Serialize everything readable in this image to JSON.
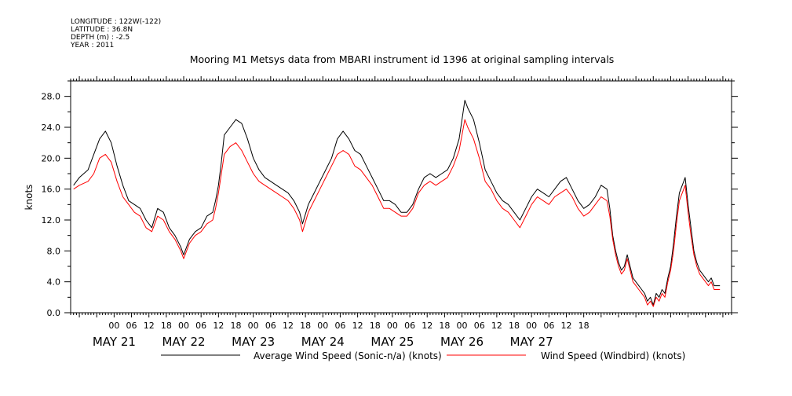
{
  "header": {
    "longitude": "LONGITUDE : 122W(-122)",
    "latitude": "LATITUDE : 36.8N",
    "depth": "DEPTH (m) : -2.5",
    "year": "YEAR : 2011"
  },
  "chart_data": {
    "type": "line",
    "title": "Mooring M1 Metsys data from MBARI instrument id 1396 at original sampling intervals",
    "xlabel": "",
    "ylabel": "knots",
    "x_unit": "hours since May 21 00:00 (2011)",
    "xlim": [
      -15,
      213
    ],
    "ylim": [
      0,
      30
    ],
    "y_ticks": [
      0.0,
      4.0,
      8.0,
      12.0,
      16.0,
      20.0,
      24.0,
      28.0
    ],
    "y_tick_labels": [
      "0.0",
      "4.0",
      "8.0",
      "12.0",
      "16.0",
      "20.0",
      "24.0",
      "28.0"
    ],
    "hour_tick_labels": [
      "00",
      "06",
      "12",
      "18",
      "00",
      "06",
      "12",
      "18",
      "00",
      "06",
      "12",
      "18",
      "00",
      "06",
      "12",
      "18",
      "00",
      "06",
      "12",
      "18",
      "00",
      "06",
      "12",
      "18",
      "00",
      "06",
      "12",
      "18"
    ],
    "day_labels": [
      "MAY 21",
      "MAY 22",
      "MAY 23",
      "MAY 24",
      "MAY 25",
      "MAY 26",
      "MAY 27"
    ],
    "grid": false,
    "legend_position": "bottom",
    "series": [
      {
        "name": "Average Wind Speed (Sonic-n/a) (knots)",
        "color": "#000000",
        "points": [
          [
            -14,
            16.5
          ],
          [
            -12,
            17.5
          ],
          [
            -9,
            18.5
          ],
          [
            -7,
            20.5
          ],
          [
            -5,
            22.5
          ],
          [
            -3,
            23.5
          ],
          [
            -1,
            22.0
          ],
          [
            1,
            19.0
          ],
          [
            3,
            16.5
          ],
          [
            5,
            14.5
          ],
          [
            7,
            14.0
          ],
          [
            9,
            13.5
          ],
          [
            11,
            12.0
          ],
          [
            13,
            11.0
          ],
          [
            15,
            13.5
          ],
          [
            17,
            13.0
          ],
          [
            19,
            11.0
          ],
          [
            21,
            10.0
          ],
          [
            23,
            8.5
          ],
          [
            24,
            7.5
          ],
          [
            26,
            9.5
          ],
          [
            28,
            10.5
          ],
          [
            30,
            11.0
          ],
          [
            32,
            12.5
          ],
          [
            34,
            13.0
          ],
          [
            35,
            14.5
          ],
          [
            36,
            16.5
          ],
          [
            37,
            19.5
          ],
          [
            38,
            23.0
          ],
          [
            40,
            24.0
          ],
          [
            42,
            25.0
          ],
          [
            44,
            24.5
          ],
          [
            46,
            22.5
          ],
          [
            48,
            20.0
          ],
          [
            50,
            18.5
          ],
          [
            52,
            17.5
          ],
          [
            54,
            17.0
          ],
          [
            56,
            16.5
          ],
          [
            58,
            16.0
          ],
          [
            60,
            15.5
          ],
          [
            62,
            14.5
          ],
          [
            64,
            13.0
          ],
          [
            65,
            11.5
          ],
          [
            67,
            14.0
          ],
          [
            69,
            15.5
          ],
          [
            71,
            17.0
          ],
          [
            73,
            18.5
          ],
          [
            75,
            20.0
          ],
          [
            77,
            22.5
          ],
          [
            79,
            23.5
          ],
          [
            81,
            22.5
          ],
          [
            83,
            21.0
          ],
          [
            85,
            20.5
          ],
          [
            87,
            19.0
          ],
          [
            89,
            17.5
          ],
          [
            91,
            16.0
          ],
          [
            93,
            14.5
          ],
          [
            95,
            14.5
          ],
          [
            97,
            14.0
          ],
          [
            99,
            13.0
          ],
          [
            101,
            13.0
          ],
          [
            103,
            14.0
          ],
          [
            105,
            16.0
          ],
          [
            107,
            17.5
          ],
          [
            109,
            18.0
          ],
          [
            111,
            17.5
          ],
          [
            113,
            18.0
          ],
          [
            115,
            18.5
          ],
          [
            117,
            20.0
          ],
          [
            119,
            22.5
          ],
          [
            120,
            25.0
          ],
          [
            121,
            27.5
          ],
          [
            122,
            26.5
          ],
          [
            124,
            25.0
          ],
          [
            126,
            22.0
          ],
          [
            128,
            18.5
          ],
          [
            130,
            17.0
          ],
          [
            132,
            15.5
          ],
          [
            134,
            14.5
          ],
          [
            136,
            14.0
          ],
          [
            138,
            13.0
          ],
          [
            140,
            12.0
          ],
          [
            142,
            13.5
          ],
          [
            144,
            15.0
          ],
          [
            146,
            16.0
          ],
          [
            148,
            15.5
          ],
          [
            150,
            15.0
          ],
          [
            152,
            16.0
          ],
          [
            154,
            17.0
          ],
          [
            156,
            17.5
          ],
          [
            158,
            16.0
          ],
          [
            160,
            14.5
          ],
          [
            162,
            13.5
          ],
          [
            164,
            14.0
          ],
          [
            166,
            15.0
          ],
          [
            168,
            16.5
          ],
          [
            170,
            16.0
          ],
          [
            171,
            13.5
          ],
          [
            172,
            10.0
          ],
          [
            173,
            8.0
          ],
          [
            174,
            6.5
          ],
          [
            175,
            5.5
          ],
          [
            176,
            6.0
          ],
          [
            177,
            7.5
          ],
          [
            178,
            6.0
          ],
          [
            179,
            4.5
          ],
          [
            180,
            4.0
          ],
          [
            181,
            3.5
          ],
          [
            182,
            3.0
          ],
          [
            183,
            2.5
          ],
          [
            184,
            1.5
          ],
          [
            185,
            2.0
          ],
          [
            186,
            1.0
          ],
          [
            187,
            2.5
          ],
          [
            188,
            2.0
          ],
          [
            189,
            3.0
          ],
          [
            190,
            2.5
          ],
          [
            191,
            4.5
          ],
          [
            192,
            6.0
          ],
          [
            193,
            9.0
          ],
          [
            194,
            12.5
          ],
          [
            195,
            15.5
          ],
          [
            196,
            16.5
          ],
          [
            197,
            17.5
          ],
          [
            198,
            14.0
          ],
          [
            199,
            11.0
          ],
          [
            200,
            8.0
          ],
          [
            201,
            6.5
          ],
          [
            202,
            5.5
          ],
          [
            203,
            5.0
          ],
          [
            204,
            4.5
          ],
          [
            205,
            4.0
          ],
          [
            206,
            4.5
          ],
          [
            207,
            3.5
          ],
          [
            208,
            3.5
          ],
          [
            209,
            3.5
          ]
        ]
      },
      {
        "name": "Wind Speed (Windbird) (knots)",
        "color": "#ff0000",
        "points": [
          [
            -14,
            16.0
          ],
          [
            -12,
            16.5
          ],
          [
            -9,
            17.0
          ],
          [
            -7,
            18.0
          ],
          [
            -5,
            20.0
          ],
          [
            -3,
            20.5
          ],
          [
            -1,
            19.5
          ],
          [
            1,
            17.0
          ],
          [
            3,
            15.0
          ],
          [
            5,
            14.0
          ],
          [
            7,
            13.0
          ],
          [
            9,
            12.5
          ],
          [
            11,
            11.0
          ],
          [
            13,
            10.5
          ],
          [
            15,
            12.5
          ],
          [
            17,
            12.0
          ],
          [
            19,
            10.5
          ],
          [
            21,
            9.5
          ],
          [
            23,
            8.0
          ],
          [
            24,
            7.0
          ],
          [
            26,
            9.0
          ],
          [
            28,
            10.0
          ],
          [
            30,
            10.5
          ],
          [
            32,
            11.5
          ],
          [
            34,
            12.0
          ],
          [
            35,
            13.5
          ],
          [
            36,
            15.5
          ],
          [
            37,
            18.0
          ],
          [
            38,
            20.5
          ],
          [
            40,
            21.5
          ],
          [
            42,
            22.0
          ],
          [
            44,
            21.0
          ],
          [
            46,
            19.5
          ],
          [
            48,
            18.0
          ],
          [
            50,
            17.0
          ],
          [
            52,
            16.5
          ],
          [
            54,
            16.0
          ],
          [
            56,
            15.5
          ],
          [
            58,
            15.0
          ],
          [
            60,
            14.5
          ],
          [
            62,
            13.5
          ],
          [
            64,
            12.0
          ],
          [
            65,
            10.5
          ],
          [
            67,
            13.0
          ],
          [
            69,
            14.5
          ],
          [
            71,
            16.0
          ],
          [
            73,
            17.5
          ],
          [
            75,
            19.0
          ],
          [
            77,
            20.5
          ],
          [
            79,
            21.0
          ],
          [
            81,
            20.5
          ],
          [
            83,
            19.0
          ],
          [
            85,
            18.5
          ],
          [
            87,
            17.5
          ],
          [
            89,
            16.5
          ],
          [
            91,
            15.0
          ],
          [
            93,
            13.5
          ],
          [
            95,
            13.5
          ],
          [
            97,
            13.0
          ],
          [
            99,
            12.5
          ],
          [
            101,
            12.5
          ],
          [
            103,
            13.5
          ],
          [
            105,
            15.5
          ],
          [
            107,
            16.5
          ],
          [
            109,
            17.0
          ],
          [
            111,
            16.5
          ],
          [
            113,
            17.0
          ],
          [
            115,
            17.5
          ],
          [
            117,
            19.0
          ],
          [
            119,
            21.0
          ],
          [
            120,
            23.0
          ],
          [
            121,
            25.0
          ],
          [
            122,
            24.0
          ],
          [
            124,
            22.5
          ],
          [
            126,
            20.0
          ],
          [
            128,
            17.0
          ],
          [
            130,
            16.0
          ],
          [
            132,
            14.5
          ],
          [
            134,
            13.5
          ],
          [
            136,
            13.0
          ],
          [
            138,
            12.0
          ],
          [
            140,
            11.0
          ],
          [
            142,
            12.5
          ],
          [
            144,
            14.0
          ],
          [
            146,
            15.0
          ],
          [
            148,
            14.5
          ],
          [
            150,
            14.0
          ],
          [
            152,
            15.0
          ],
          [
            154,
            15.5
          ],
          [
            156,
            16.0
          ],
          [
            158,
            15.0
          ],
          [
            160,
            13.5
          ],
          [
            162,
            12.5
          ],
          [
            164,
            13.0
          ],
          [
            166,
            14.0
          ],
          [
            168,
            15.0
          ],
          [
            170,
            14.5
          ],
          [
            171,
            12.5
          ],
          [
            172,
            9.5
          ],
          [
            173,
            7.5
          ],
          [
            174,
            6.0
          ],
          [
            175,
            5.0
          ],
          [
            176,
            5.5
          ],
          [
            177,
            7.0
          ],
          [
            178,
            5.5
          ],
          [
            179,
            4.0
          ],
          [
            180,
            3.5
          ],
          [
            181,
            3.0
          ],
          [
            182,
            2.5
          ],
          [
            183,
            2.0
          ],
          [
            184,
            1.0
          ],
          [
            185,
            1.5
          ],
          [
            186,
            0.8
          ],
          [
            187,
            2.0
          ],
          [
            188,
            1.5
          ],
          [
            189,
            2.5
          ],
          [
            190,
            2.0
          ],
          [
            191,
            4.0
          ],
          [
            192,
            5.5
          ],
          [
            193,
            8.0
          ],
          [
            194,
            11.5
          ],
          [
            195,
            14.5
          ],
          [
            196,
            15.5
          ],
          [
            197,
            16.5
          ],
          [
            198,
            13.0
          ],
          [
            199,
            10.0
          ],
          [
            200,
            7.5
          ],
          [
            201,
            6.0
          ],
          [
            202,
            5.0
          ],
          [
            203,
            4.5
          ],
          [
            204,
            4.0
          ],
          [
            205,
            3.5
          ],
          [
            206,
            4.0
          ],
          [
            207,
            3.0
          ],
          [
            208,
            3.0
          ],
          [
            209,
            3.0
          ]
        ]
      }
    ]
  },
  "legend": {
    "entries": [
      {
        "label": "Average Wind Speed (Sonic-n/a) (knots)",
        "color": "#000000"
      },
      {
        "label": "Wind Speed (Windbird) (knots)",
        "color": "#ff0000"
      }
    ]
  }
}
